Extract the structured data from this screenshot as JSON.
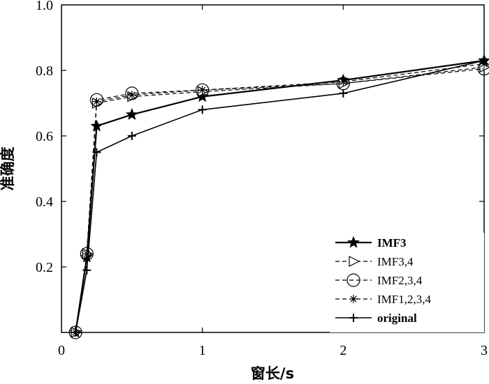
{
  "chart_data": {
    "type": "line",
    "xlabel": "窗长/s",
    "ylabel": "准确度",
    "xlim": [
      0,
      3
    ],
    "ylim": [
      0,
      1.0
    ],
    "xticks": [
      "0",
      "1",
      "2",
      "3"
    ],
    "yticks": [
      "0.2",
      "0.4",
      "0.6",
      "0.8",
      "1.0"
    ],
    "grid": false,
    "legend_position": "bottom-right",
    "series": [
      {
        "name": "IMF3",
        "style": "solid-bold",
        "marker": "star-filled",
        "x": [
          0.1,
          0.18,
          0.25,
          0.5,
          1.0,
          2.0,
          3.0
        ],
        "y": [
          0.0,
          0.23,
          0.63,
          0.665,
          0.72,
          0.77,
          0.83
        ]
      },
      {
        "name": "IMF3,4",
        "style": "dashed",
        "marker": "triangle-right",
        "x": [
          0.1,
          0.18,
          0.25,
          0.5,
          1.0,
          2.0,
          3.0
        ],
        "y": [
          0.0,
          0.24,
          0.7,
          0.72,
          0.735,
          0.76,
          0.81
        ]
      },
      {
        "name": "IMF2,3,4",
        "style": "dashed",
        "marker": "circle",
        "x": [
          0.1,
          0.18,
          0.25,
          0.5,
          1.0,
          2.0,
          3.0
        ],
        "y": [
          0.0,
          0.24,
          0.71,
          0.73,
          0.74,
          0.76,
          0.805
        ]
      },
      {
        "name": "IMF1,2,3,4",
        "style": "dashed",
        "marker": "asterisk",
        "x": [
          0.1,
          0.18,
          0.25,
          0.5,
          1.0,
          2.0,
          3.0
        ],
        "y": [
          0.0,
          0.24,
          0.705,
          0.725,
          0.74,
          0.765,
          0.82
        ]
      },
      {
        "name": "original",
        "style": "solid",
        "marker": "plus",
        "x": [
          0.1,
          0.18,
          0.25,
          0.5,
          1.0,
          2.0,
          3.0
        ],
        "y": [
          0.0,
          0.19,
          0.55,
          0.6,
          0.68,
          0.73,
          0.83
        ]
      }
    ]
  }
}
